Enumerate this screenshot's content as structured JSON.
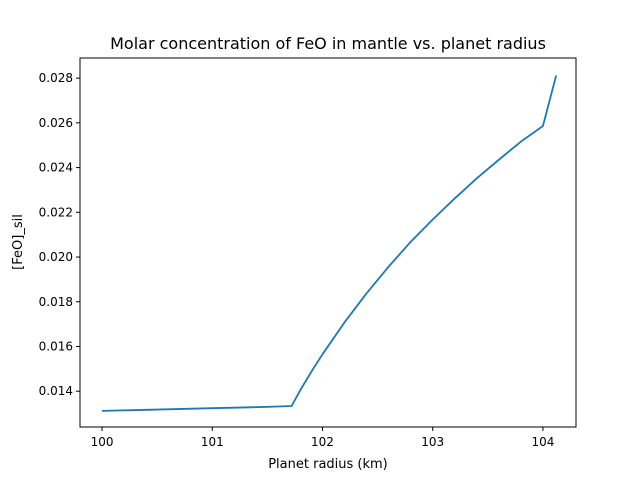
{
  "chart_data": {
    "type": "line",
    "title": "Molar concentration of FeO in mantle vs. planet radius",
    "xlabel": "Planet radius (km)",
    "ylabel": "[FeO]_sil",
    "xlim": [
      99.8,
      104.3
    ],
    "ylim": [
      0.0124,
      0.0289
    ],
    "xticks": [
      100,
      101,
      102,
      103,
      104
    ],
    "xtick_labels": [
      "100",
      "101",
      "102",
      "103",
      "104"
    ],
    "yticks": [
      0.014,
      0.016,
      0.018,
      0.02,
      0.022,
      0.024,
      0.026,
      0.028
    ],
    "ytick_labels": [
      "0.014",
      "0.016",
      "0.018",
      "0.020",
      "0.022",
      "0.024",
      "0.026",
      "0.028"
    ],
    "grid": false,
    "series": [
      {
        "color": "#1f77b4",
        "x": [
          100.0,
          100.5,
          101.0,
          101.5,
          101.72,
          101.8,
          101.9,
          102.0,
          102.2,
          102.4,
          102.6,
          102.8,
          103.0,
          103.2,
          103.4,
          103.6,
          103.8,
          104.0,
          104.12
        ],
        "y": [
          0.01312,
          0.01318,
          0.01324,
          0.0133,
          0.01334,
          0.01406,
          0.01488,
          0.01565,
          0.01708,
          0.01838,
          0.01957,
          0.02068,
          0.02168,
          0.02262,
          0.02352,
          0.02435,
          0.02516,
          0.02586,
          0.02812
        ]
      }
    ]
  }
}
